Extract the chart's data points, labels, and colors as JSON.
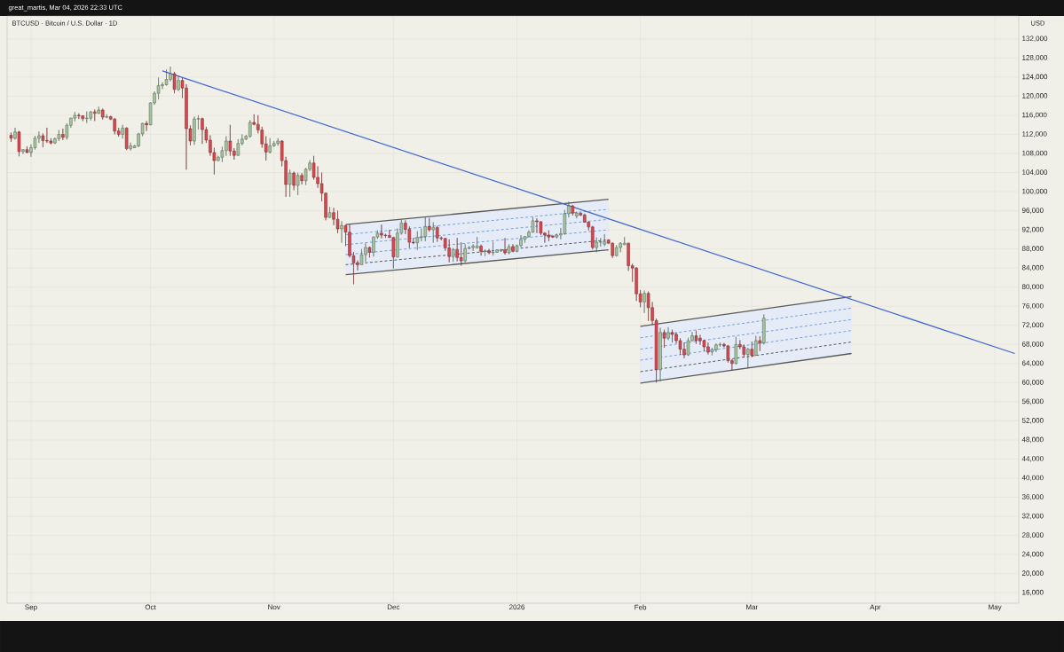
{
  "chart_data": {
    "type": "candlestick",
    "title": "BTCUSD · Bitcoin / U.S. Dollar · 1D",
    "ylabel": "USD",
    "annotations": [
      "great_martis, Mar 04, 2026 22:33 UTC"
    ],
    "colors": [
      "#d9484f",
      "#a3c49f",
      "#d9484f",
      "#a3c49f",
      "#d9484f",
      "#a3c49f",
      "#a3c49f",
      "#a3c49f",
      "#d9484f",
      "#d9484f",
      "#d9484f",
      "#a3c49f",
      "#a3c49f",
      "#d9484f",
      "#a3c49f",
      "#a3c49f",
      "#a3c49f",
      "#d9484f",
      "#d9484f",
      "#a3c49f",
      "#a3c49f",
      "#d9484f",
      "#a3c49f",
      "#d9484f",
      "#a3c49f",
      "#d9484f",
      "#d9484f",
      "#d9484f",
      "#a3c49f",
      "#d9484f",
      "#a3c49f",
      "#a3c49f",
      "#a3c49f",
      "#a3c49f",
      "#d9484f",
      "#a3c49f",
      "#a3c49f",
      "#a3c49f",
      "#a3c49f",
      "#a3c49f",
      "#a3c49f",
      "#d9484f",
      "#a3c49f",
      "#d9484f",
      "#d9484f",
      "#d9484f",
      "#a3c49f",
      "#a3c49f",
      "#d9484f",
      "#d9484f",
      "#d9484f",
      "#d9484f",
      "#a3c49f",
      "#a3c49f",
      "#a3c49f",
      "#d9484f",
      "#d9484f",
      "#a3c49f",
      "#a3c49f",
      "#a3c49f",
      "#a3c49f",
      "#d9484f",
      "#d9484f",
      "#d9484f",
      "#d9484f",
      "#a3c49f",
      "#a3c49f",
      "#a3c49f",
      "#d9484f",
      "#d9484f",
      "#a3c49f",
      "#d9484f",
      "#a3c49f",
      "#d9484f",
      "#a3c49f",
      "#a3c49f",
      "#d9484f",
      "#d9484f",
      "#d9484f",
      "#d9484f",
      "#a3c49f",
      "#d9484f",
      "#d9484f",
      "#a3c49f",
      "#d9484f",
      "#d9484f",
      "#d9484f",
      "#d9484f",
      "#a3c49f",
      "#a3c49f",
      "#d9484f",
      "#a3c49f",
      "#a3c49f",
      "#d9484f",
      "#d9484f",
      "#d9484f",
      "#d9484f",
      "#a3c49f",
      "#a3c49f",
      "#d9484f",
      "#d9484f",
      "#d9484f",
      "#a3c49f",
      "#a3c49f",
      "#a3c49f",
      "#d9484f",
      "#a3c49f",
      "#d9484f",
      "#d9484f",
      "#d9484f",
      "#d9484f",
      "#a3c49f",
      "#d9484f",
      "#d9484f",
      "#a3c49f",
      "#a3c49f",
      "#a3c49f",
      "#a3c49f",
      "#d9484f",
      "#a3c49f",
      "#d9484f",
      "#a3c49f",
      "#a3c49f",
      "#a3c49f",
      "#d9484f",
      "#a3c49f",
      "#d9484f",
      "#a3c49f",
      "#a3c49f",
      "#a3c49f",
      "#a3c49f",
      "#a3c49f",
      "#d9484f",
      "#d9484f",
      "#d9484f",
      "#d9484f",
      "#d9484f",
      "#a3c49f",
      "#a3c49f",
      "#a3c49f",
      "#a3c49f",
      "#d9484f",
      "#a3c49f",
      "#d9484f",
      "#d9484f",
      "#d9484f",
      "#d9484f",
      "#a3c49f",
      "#a3c49f",
      "#a3c49f",
      "#d9484f",
      "#d9484f",
      "#a3c49f",
      "#a3c49f",
      "#a3c49f",
      "#d9484f",
      "#d9484f",
      "#d9484f",
      "#d9484f",
      "#a3c49f",
      "#d9484f",
      "#d9484f",
      "#d9484f",
      "#a3c49f",
      "#d9484f",
      "#a3c49f",
      "#d9484f",
      "#d9484f",
      "#d9484f",
      "#d9484f",
      "#a3c49f",
      "#a3c49f",
      "#d9484f",
      "#d9484f",
      "#d9484f",
      "#d9484f",
      "#a3c49f",
      "#a3c49f",
      "#a3c49f",
      "#d9484f",
      "#d9484f",
      "#d9484f",
      "#a3c49f",
      "#d9484f",
      "#d9484f",
      "#a3c49f",
      "#d9484f",
      "#a3c49f",
      "#d9484f",
      "#a3c49f"
    ],
    "grid": true,
    "xlim": [
      "2025-08-26",
      "2026-05-07"
    ],
    "ylim": [
      13800,
      136800
    ],
    "xticks": [
      {
        "value": "2025-09-01",
        "label": "Sep"
      },
      {
        "value": "2025-10-01",
        "label": "Oct"
      },
      {
        "value": "2025-11-01",
        "label": "Nov"
      },
      {
        "value": "2025-12-01",
        "label": "Dec"
      },
      {
        "value": "2026-01-01",
        "label": "2026"
      },
      {
        "value": "2026-02-01",
        "label": "Feb"
      },
      {
        "value": "2026-03-01",
        "label": "Mar"
      },
      {
        "value": "2026-04-01",
        "label": "Apr"
      },
      {
        "value": "2026-05-01",
        "label": "May"
      }
    ],
    "yticks": [
      {
        "value": 16000,
        "label": "16,000"
      },
      {
        "value": 20000,
        "label": "20,000"
      },
      {
        "value": 24000,
        "label": "24,000"
      },
      {
        "value": 28000,
        "label": "28,000"
      },
      {
        "value": 32000,
        "label": "32,000"
      },
      {
        "value": 36000,
        "label": "36,000"
      },
      {
        "value": 40000,
        "label": "40,000"
      },
      {
        "value": 44000,
        "label": "44,000"
      },
      {
        "value": 48000,
        "label": "48,000"
      },
      {
        "value": 52000,
        "label": "52,000"
      },
      {
        "value": 56000,
        "label": "56,000"
      },
      {
        "value": 60000,
        "label": "60,000"
      },
      {
        "value": 64000,
        "label": "64,000"
      },
      {
        "value": 68000,
        "label": "68,000"
      },
      {
        "value": 72000,
        "label": "72,000"
      },
      {
        "value": 76000,
        "label": "76,000"
      },
      {
        "value": 80000,
        "label": "80,000"
      },
      {
        "value": 84000,
        "label": "84,000"
      },
      {
        "value": 88000,
        "label": "88,000"
      },
      {
        "value": 92000,
        "label": "92,000"
      },
      {
        "value": 96000,
        "label": "96,000"
      },
      {
        "value": 100000,
        "label": "100,000"
      },
      {
        "value": 104000,
        "label": "104,000"
      },
      {
        "value": 108000,
        "label": "108,000"
      },
      {
        "value": 112000,
        "label": "112,000"
      },
      {
        "value": 116000,
        "label": "116,000"
      },
      {
        "value": 120000,
        "label": "120,000"
      },
      {
        "value": 124000,
        "label": "124,000"
      },
      {
        "value": 128000,
        "label": "128,000"
      },
      {
        "value": 132000,
        "label": "132,000"
      }
    ],
    "series": [
      {
        "type": "line",
        "color": "#5b8bd6",
        "line_style": "dashed",
        "x": [
          "2025-11-19",
          "2026-01-24"
        ],
        "values": [
          86800,
          92000
        ],
        "lower": [
          82600,
          87800
        ],
        "upper": [
          93100,
          98400
        ]
      },
      {
        "type": "line",
        "color": "#333333",
        "line_style": "dashed",
        "x": [
          "2025-11-19",
          "2026-01-24"
        ],
        "values": [
          84700,
          89900
        ]
      },
      {
        "type": "line",
        "color": "#5b8bd6",
        "line_style": "dashed",
        "x": [
          "2025-11-19",
          "2026-01-24"
        ],
        "values": [
          88900,
          94200
        ]
      },
      {
        "type": "line",
        "color": "#5b8bd6",
        "line_style": "dashed",
        "x": [
          "2025-11-19",
          "2026-01-24"
        ],
        "values": [
          91000,
          96300
        ]
      },
      {
        "type": "line",
        "color": "#5b8bd6",
        "line_style": "dashed",
        "x": [
          "2026-02-01",
          "2026-03-26"
        ],
        "values": [
          64700,
          70900
        ],
        "lower": [
          59900,
          66100
        ],
        "upper": [
          71800,
          78000
        ]
      },
      {
        "type": "line",
        "color": "#333333",
        "line_style": "dashed",
        "x": [
          "2026-02-01",
          "2026-03-26"
        ],
        "values": [
          62300,
          68500
        ]
      },
      {
        "type": "line",
        "color": "#5b8bd6",
        "line_style": "dashed",
        "x": [
          "2026-02-01",
          "2026-03-26"
        ],
        "values": [
          67000,
          73200
        ]
      },
      {
        "type": "line",
        "color": "#5b8bd6",
        "line_style": "dashed",
        "x": [
          "2026-02-01",
          "2026-03-26"
        ],
        "values": [
          69400,
          75600
        ]
      },
      {
        "type": "line",
        "color": "#595959",
        "line_style": "solid",
        "x": [
          "2025-11-19",
          "2026-01-24"
        ],
        "values": [
          82600,
          87800
        ]
      },
      {
        "type": "line",
        "color": "#595959",
        "line_style": "solid",
        "x": [
          "2025-11-19",
          "2026-01-24"
        ],
        "values": [
          93100,
          98400
        ]
      },
      {
        "type": "line",
        "color": "#595959",
        "line_style": "solid",
        "x": [
          "2026-02-01",
          "2026-03-26"
        ],
        "values": [
          59900,
          66100
        ]
      },
      {
        "type": "line",
        "color": "#595959",
        "line_style": "solid",
        "x": [
          "2026-02-01",
          "2026-03-26"
        ],
        "values": [
          71800,
          78000
        ]
      },
      {
        "type": "line",
        "color": "#3f63d8",
        "line_style": "solid",
        "x": [
          "2025-10-04",
          "2026-05-06"
        ],
        "values": [
          125300,
          66100
        ]
      }
    ],
    "x": [
      "2025-08-27",
      "2025-08-28",
      "2025-08-29",
      "2025-08-30",
      "2025-08-31",
      "2025-09-01",
      "2025-09-02",
      "2025-09-03",
      "2025-09-04",
      "2025-09-05",
      "2025-09-06",
      "2025-09-07",
      "2025-09-08",
      "2025-09-09",
      "2025-09-10",
      "2025-09-11",
      "2025-09-12",
      "2025-09-13",
      "2025-09-14",
      "2025-09-15",
      "2025-09-16",
      "2025-09-17",
      "2025-09-18",
      "2025-09-19",
      "2025-09-20",
      "2025-09-21",
      "2025-09-22",
      "2025-09-23",
      "2025-09-24",
      "2025-09-25",
      "2025-09-26",
      "2025-09-27",
      "2025-09-28",
      "2025-09-29",
      "2025-09-30",
      "2025-10-01",
      "2025-10-02",
      "2025-10-03",
      "2025-10-04",
      "2025-10-05",
      "2025-10-06",
      "2025-10-07",
      "2025-10-08",
      "2025-10-09",
      "2025-10-10",
      "2025-10-11",
      "2025-10-12",
      "2025-10-13",
      "2025-10-14",
      "2025-10-15",
      "2025-10-16",
      "2025-10-17",
      "2025-10-18",
      "2025-10-19",
      "2025-10-20",
      "2025-10-21",
      "2025-10-22",
      "2025-10-23",
      "2025-10-24",
      "2025-10-25",
      "2025-10-26",
      "2025-10-27",
      "2025-10-28",
      "2025-10-29",
      "2025-10-30",
      "2025-10-31",
      "2025-11-01",
      "2025-11-02",
      "2025-11-03",
      "2025-11-04",
      "2025-11-05",
      "2025-11-06",
      "2025-11-07",
      "2025-11-08",
      "2025-11-09",
      "2025-11-10",
      "2025-11-11",
      "2025-11-12",
      "2025-11-13",
      "2025-11-14",
      "2025-11-15",
      "2025-11-16",
      "2025-11-17",
      "2025-11-18",
      "2025-11-19",
      "2025-11-20",
      "2025-11-21",
      "2025-11-22",
      "2025-11-23",
      "2025-11-24",
      "2025-11-25",
      "2025-11-26",
      "2025-11-27",
      "2025-11-28",
      "2025-11-29",
      "2025-11-30",
      "2025-12-01",
      "2025-12-02",
      "2025-12-03",
      "2025-12-04",
      "2025-12-05",
      "2025-12-06",
      "2025-12-07",
      "2025-12-08",
      "2025-12-09",
      "2025-12-10",
      "2025-12-11",
      "2025-12-12",
      "2025-12-13",
      "2025-12-14",
      "2025-12-15",
      "2025-12-16",
      "2025-12-17",
      "2025-12-18",
      "2025-12-19",
      "2025-12-20",
      "2025-12-21",
      "2025-12-22",
      "2025-12-23",
      "2025-12-24",
      "2025-12-25",
      "2025-12-26",
      "2025-12-27",
      "2025-12-28",
      "2025-12-29",
      "2025-12-30",
      "2025-12-31",
      "2026-01-01",
      "2026-01-02",
      "2026-01-03",
      "2026-01-04",
      "2026-01-05",
      "2026-01-06",
      "2026-01-07",
      "2026-01-08",
      "2026-01-09",
      "2026-01-10",
      "2026-01-11",
      "2026-01-12",
      "2026-01-13",
      "2026-01-14",
      "2026-01-15",
      "2026-01-16",
      "2026-01-17",
      "2026-01-18",
      "2026-01-19",
      "2026-01-20",
      "2026-01-21",
      "2026-01-22",
      "2026-01-23",
      "2026-01-24",
      "2026-01-25",
      "2026-01-26",
      "2026-01-27",
      "2026-01-28",
      "2026-01-29",
      "2026-01-30",
      "2026-01-31",
      "2026-02-01",
      "2026-02-02",
      "2026-02-03",
      "2026-02-04",
      "2026-02-05",
      "2026-02-06",
      "2026-02-07",
      "2026-02-08",
      "2026-02-09",
      "2026-02-10",
      "2026-02-11",
      "2026-02-12",
      "2026-02-13",
      "2026-02-14",
      "2026-02-15",
      "2026-02-16",
      "2026-02-17",
      "2026-02-18",
      "2026-02-19",
      "2026-02-20",
      "2026-02-21",
      "2026-02-22",
      "2026-02-23",
      "2026-02-24",
      "2026-02-25",
      "2026-02-26",
      "2026-02-27",
      "2026-02-28",
      "2026-03-01",
      "2026-03-02",
      "2026-03-03",
      "2026-03-04"
    ],
    "ohlc": [
      [
        111800,
        112400,
        110400,
        111200
      ],
      [
        111200,
        113400,
        110900,
        112500
      ],
      [
        112500,
        112700,
        107400,
        108400
      ],
      [
        108400,
        108900,
        107900,
        108800
      ],
      [
        108800,
        109500,
        108100,
        108200
      ],
      [
        108200,
        109900,
        107300,
        109200
      ],
      [
        109200,
        111700,
        108800,
        111200
      ],
      [
        111200,
        112600,
        110200,
        111700
      ],
      [
        111700,
        112200,
        109300,
        110700
      ],
      [
        110700,
        113400,
        110200,
        110600
      ],
      [
        110600,
        111200,
        109900,
        110200
      ],
      [
        110200,
        111300,
        110000,
        111100
      ],
      [
        111100,
        112900,
        110600,
        112000
      ],
      [
        112000,
        113200,
        110800,
        111400
      ],
      [
        111400,
        114300,
        110900,
        113900
      ],
      [
        113900,
        115500,
        113400,
        115400
      ],
      [
        115400,
        116700,
        114700,
        116000
      ],
      [
        116000,
        116400,
        115200,
        115900
      ],
      [
        115900,
        116000,
        114800,
        115300
      ],
      [
        115300,
        116800,
        114400,
        115400
      ],
      [
        115400,
        116900,
        114900,
        116700
      ],
      [
        116700,
        117200,
        114800,
        116400
      ],
      [
        116400,
        117800,
        116300,
        117100
      ],
      [
        117100,
        117400,
        115100,
        115600
      ],
      [
        115600,
        116200,
        115400,
        115700
      ],
      [
        115700,
        115900,
        115000,
        115200
      ],
      [
        115200,
        115400,
        112000,
        112700
      ],
      [
        112700,
        113400,
        111500,
        112000
      ],
      [
        112000,
        114000,
        111100,
        113300
      ],
      [
        113300,
        113500,
        108700,
        109000
      ],
      [
        109000,
        110300,
        108600,
        109600
      ],
      [
        109200,
        109800,
        109100,
        109600
      ],
      [
        109600,
        112300,
        109300,
        112100
      ],
      [
        112100,
        114400,
        111600,
        114300
      ],
      [
        114300,
        114800,
        112700,
        114000
      ],
      [
        114000,
        118700,
        113900,
        118600
      ],
      [
        118600,
        121000,
        118200,
        120600
      ],
      [
        120600,
        123900,
        119300,
        122200
      ],
      [
        122200,
        122900,
        121500,
        122400
      ],
      [
        122400,
        125600,
        122200,
        123500
      ],
      [
        123500,
        126200,
        123100,
        124700
      ],
      [
        124700,
        125100,
        120600,
        121400
      ],
      [
        121400,
        124200,
        121100,
        123300
      ],
      [
        123300,
        123800,
        119600,
        121700
      ],
      [
        121700,
        122500,
        104600,
        113200
      ],
      [
        113200,
        113900,
        109700,
        110600
      ],
      [
        110600,
        115700,
        109800,
        115200
      ],
      [
        115200,
        116000,
        113000,
        115300
      ],
      [
        115300,
        115500,
        110000,
        113000
      ],
      [
        113000,
        113600,
        110200,
        110800
      ],
      [
        110800,
        111800,
        107500,
        108200
      ],
      [
        108200,
        109200,
        103600,
        106500
      ],
      [
        106500,
        107500,
        106400,
        107200
      ],
      [
        107200,
        109400,
        106200,
        108600
      ],
      [
        108600,
        111600,
        107500,
        110600
      ],
      [
        110600,
        114000,
        107500,
        108500
      ],
      [
        108500,
        109100,
        106700,
        107600
      ],
      [
        107600,
        111000,
        107500,
        110100
      ],
      [
        110100,
        112000,
        109700,
        111000
      ],
      [
        111000,
        111900,
        110800,
        111600
      ],
      [
        111600,
        115000,
        111300,
        114500
      ],
      [
        114500,
        116200,
        113900,
        114100
      ],
      [
        114100,
        116000,
        112200,
        112900
      ],
      [
        112900,
        113600,
        109200,
        110000
      ],
      [
        110000,
        111600,
        106500,
        108300
      ],
      [
        108300,
        111200,
        108000,
        109600
      ],
      [
        109600,
        110600,
        109400,
        110100
      ],
      [
        110100,
        111200,
        109600,
        110600
      ],
      [
        110600,
        110800,
        105300,
        106500
      ],
      [
        106500,
        107300,
        98900,
        101500
      ],
      [
        101500,
        104600,
        98900,
        103900
      ],
      [
        103900,
        104200,
        100300,
        101300
      ],
      [
        101300,
        104000,
        99300,
        103400
      ],
      [
        103400,
        103900,
        101500,
        102300
      ],
      [
        102300,
        105000,
        101400,
        104700
      ],
      [
        104700,
        106600,
        104300,
        106000
      ],
      [
        106000,
        107500,
        102500,
        103000
      ],
      [
        103000,
        105300,
        100800,
        101700
      ],
      [
        101700,
        104000,
        98000,
        99700
      ],
      [
        99700,
        99800,
        94000,
        94600
      ],
      [
        94600,
        96800,
        94500,
        95600
      ],
      [
        95600,
        96600,
        93000,
        94200
      ],
      [
        94200,
        96000,
        91300,
        92200
      ],
      [
        92200,
        93800,
        89300,
        92900
      ],
      [
        92900,
        93000,
        88600,
        91500
      ],
      [
        91500,
        93100,
        86200,
        86600
      ],
      [
        86600,
        87400,
        80600,
        85100
      ],
      [
        85100,
        85600,
        83500,
        84700
      ],
      [
        84700,
        88000,
        84700,
        86800
      ],
      [
        86800,
        89200,
        85300,
        88300
      ],
      [
        88300,
        88500,
        86200,
        87300
      ],
      [
        87300,
        90600,
        86400,
        90500
      ],
      [
        90500,
        91900,
        90100,
        91300
      ],
      [
        91300,
        93100,
        90200,
        90900
      ],
      [
        90900,
        91200,
        90300,
        90800
      ],
      [
        90800,
        92000,
        90300,
        90400
      ],
      [
        90400,
        90500,
        83900,
        86300
      ],
      [
        86300,
        92300,
        86200,
        91300
      ],
      [
        91300,
        94100,
        91000,
        93400
      ],
      [
        93400,
        94000,
        91100,
        92100
      ],
      [
        92100,
        92700,
        88200,
        89400
      ],
      [
        89400,
        90300,
        89000,
        89300
      ],
      [
        89300,
        91700,
        87800,
        90400
      ],
      [
        90400,
        92300,
        89600,
        90600
      ],
      [
        90600,
        94600,
        89600,
        92700
      ],
      [
        92700,
        94500,
        91600,
        92000
      ],
      [
        92000,
        93600,
        89300,
        92500
      ],
      [
        92500,
        92800,
        89500,
        90300
      ],
      [
        90300,
        90600,
        89800,
        90200
      ],
      [
        90200,
        90300,
        87600,
        88200
      ],
      [
        88200,
        90000,
        85200,
        86400
      ],
      [
        86400,
        88200,
        85300,
        87900
      ],
      [
        87900,
        90300,
        85400,
        86200
      ],
      [
        86200,
        89400,
        84500,
        85500
      ],
      [
        85500,
        89000,
        85200,
        88100
      ],
      [
        88100,
        88600,
        87900,
        88300
      ],
      [
        88300,
        89000,
        87600,
        88600
      ],
      [
        88200,
        90500,
        88100,
        88600
      ],
      [
        88600,
        88900,
        86600,
        87500
      ],
      [
        87500,
        87900,
        86500,
        87600
      ],
      [
        87600,
        88000,
        86900,
        87200
      ],
      [
        87200,
        89500,
        86600,
        87300
      ],
      [
        87300,
        87900,
        87200,
        87800
      ],
      [
        87600,
        88000,
        87400,
        87800
      ],
      [
        87800,
        90300,
        86800,
        87200
      ],
      [
        87200,
        89000,
        86900,
        88500
      ],
      [
        88500,
        89000,
        87300,
        87500
      ],
      [
        87500,
        88900,
        87300,
        88700
      ],
      [
        88700,
        90900,
        88400,
        90000
      ],
      [
        90000,
        90700,
        89300,
        90600
      ],
      [
        90600,
        91900,
        90400,
        91500
      ],
      [
        91500,
        94700,
        91400,
        93900
      ],
      [
        93900,
        94400,
        91300,
        93700
      ],
      [
        93700,
        93800,
        90900,
        91300
      ],
      [
        91300,
        91500,
        89300,
        90900
      ],
      [
        90900,
        91900,
        89600,
        90500
      ],
      [
        90700,
        90800,
        90300,
        90500
      ],
      [
        90500,
        91200,
        90200,
        90900
      ],
      [
        90900,
        92400,
        90000,
        91200
      ],
      [
        91200,
        96200,
        91000,
        95400
      ],
      [
        95400,
        97900,
        94600,
        97000
      ],
      [
        97000,
        97200,
        95000,
        95500
      ],
      [
        94900,
        95800,
        94400,
        95500
      ],
      [
        95500,
        95600,
        94900,
        95100
      ],
      [
        95100,
        95400,
        93500,
        93600
      ],
      [
        93600,
        93800,
        91900,
        92600
      ],
      [
        92600,
        92800,
        87900,
        88300
      ],
      [
        88300,
        90400,
        87300,
        89400
      ],
      [
        89400,
        90300,
        88500,
        89500
      ],
      [
        89000,
        91100,
        88600,
        89500
      ],
      [
        89900,
        90000,
        89100,
        89200
      ],
      [
        89200,
        89400,
        86100,
        86600
      ],
      [
        86600,
        88800,
        86400,
        88300
      ],
      [
        88300,
        89400,
        87300,
        89200
      ],
      [
        88900,
        90500,
        88800,
        89200
      ],
      [
        89200,
        89300,
        83400,
        84500
      ],
      [
        84500,
        84900,
        81100,
        84000
      ],
      [
        84000,
        84200,
        77100,
        78600
      ],
      [
        78600,
        79400,
        75800,
        76900
      ],
      [
        76900,
        79300,
        74600,
        78700
      ],
      [
        78700,
        79100,
        72900,
        75700
      ],
      [
        75700,
        76900,
        72100,
        73000
      ],
      [
        73000,
        73400,
        60000,
        62700
      ],
      [
        62700,
        71500,
        60300,
        70500
      ],
      [
        70500,
        71100,
        67300,
        69300
      ],
      [
        69300,
        71600,
        68900,
        70500
      ],
      [
        70500,
        71100,
        68400,
        70100
      ],
      [
        70100,
        70500,
        68200,
        68800
      ],
      [
        68800,
        69300,
        65800,
        67000
      ],
      [
        67000,
        68400,
        65100,
        65800
      ],
      [
        65800,
        69400,
        65600,
        68800
      ],
      [
        68800,
        70600,
        68700,
        69800
      ],
      [
        69800,
        70900,
        68100,
        68800
      ],
      [
        69300,
        70000,
        67900,
        68800
      ],
      [
        68800,
        69000,
        66600,
        67500
      ],
      [
        67500,
        68400,
        65900,
        66400
      ],
      [
        66400,
        67300,
        65700,
        66900
      ],
      [
        66900,
        68200,
        66400,
        67900
      ],
      [
        67900,
        68400,
        67500,
        68000
      ],
      [
        68000,
        68300,
        67400,
        67700
      ],
      [
        67700,
        67900,
        64200,
        64600
      ],
      [
        64600,
        64900,
        62600,
        64000
      ],
      [
        64000,
        69600,
        63800,
        68000
      ],
      [
        68000,
        68900,
        67000,
        67500
      ],
      [
        67500,
        68000,
        65300,
        65900
      ],
      [
        65900,
        67300,
        63000,
        67000
      ],
      [
        67000,
        68600,
        65300,
        65700
      ],
      [
        65700,
        69800,
        65600,
        68800
      ],
      [
        68800,
        69700,
        66600,
        68300
      ],
      [
        68300,
        74300,
        68000,
        73500
      ]
    ]
  }
}
